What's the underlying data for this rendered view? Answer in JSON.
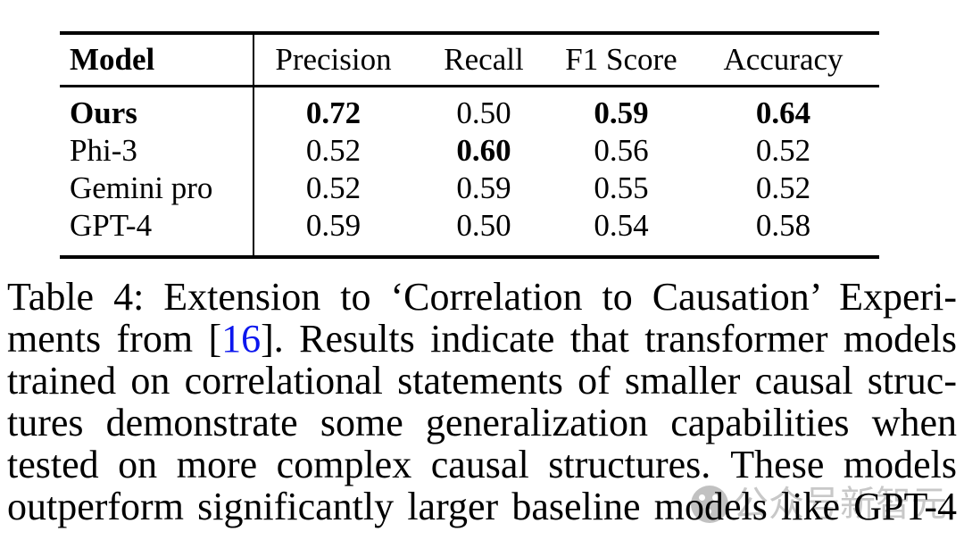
{
  "page": {
    "background": "#ffffff",
    "text_color": "#000000",
    "citation_color": "#0b16ee",
    "watermark_color": "#9c9c9c"
  },
  "table": {
    "columns": [
      "Model",
      "Precision",
      "Recall",
      "F1 Score",
      "Accuracy"
    ],
    "rows": [
      {
        "model": "Ours",
        "model_bold": true,
        "values": [
          {
            "text": "0.72",
            "bold": true
          },
          {
            "text": "0.50",
            "bold": false
          },
          {
            "text": "0.59",
            "bold": true
          },
          {
            "text": "0.64",
            "bold": true
          }
        ]
      },
      {
        "model": "Phi-3",
        "model_bold": false,
        "values": [
          {
            "text": "0.52",
            "bold": false
          },
          {
            "text": "0.60",
            "bold": true
          },
          {
            "text": "0.56",
            "bold": false
          },
          {
            "text": "0.52",
            "bold": false
          }
        ]
      },
      {
        "model": "Gemini pro",
        "model_bold": false,
        "values": [
          {
            "text": "0.52",
            "bold": false
          },
          {
            "text": "0.59",
            "bold": false
          },
          {
            "text": "0.55",
            "bold": false
          },
          {
            "text": "0.52",
            "bold": false
          }
        ]
      },
      {
        "model": "GPT-4",
        "model_bold": false,
        "values": [
          {
            "text": "0.59",
            "bold": false
          },
          {
            "text": "0.50",
            "bold": false
          },
          {
            "text": "0.54",
            "bold": false
          },
          {
            "text": "0.58",
            "bold": false
          }
        ]
      }
    ]
  },
  "caption": {
    "label": "Table 4:",
    "lines": [
      {
        "segments": [
          {
            "text": "Table 4: Extension to ‘Correlation to Causation’ Experi-"
          }
        ]
      },
      {
        "segments": [
          {
            "text": "ments from ["
          },
          {
            "text": "16",
            "link": true
          },
          {
            "text": "]. Results indicate that transformer models"
          }
        ]
      },
      {
        "segments": [
          {
            "text": "trained on correlational statements of smaller causal struc-"
          }
        ]
      },
      {
        "segments": [
          {
            "text": "tures demonstrate some generalization capabilities when"
          }
        ]
      },
      {
        "segments": [
          {
            "text": "tested on more complex causal structures. These models"
          }
        ]
      },
      {
        "segments": [
          {
            "text": "outperform significantly larger baseline models like GPT-4"
          }
        ]
      }
    ]
  },
  "watermark": {
    "icon": "wechat-account-logo",
    "text": "公众号新智元"
  }
}
